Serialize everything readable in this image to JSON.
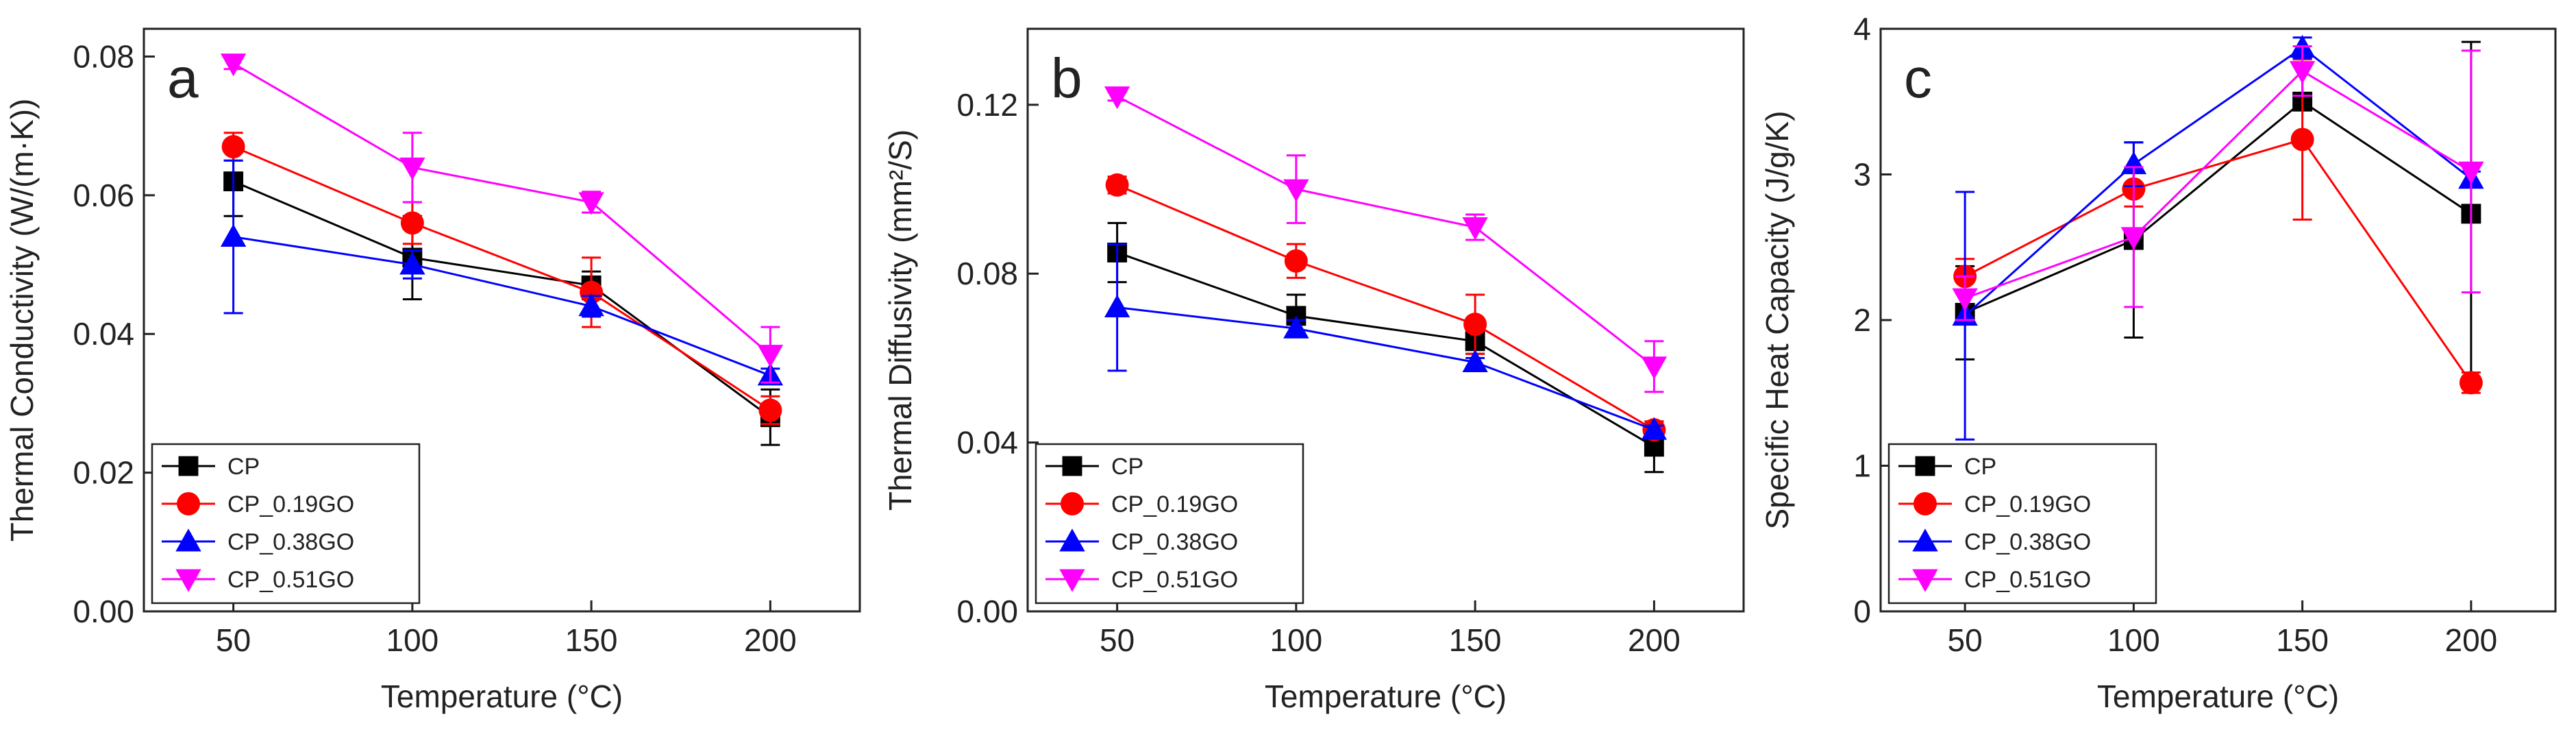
{
  "figure": {
    "layout": "three panels side by side"
  },
  "chart_data": [
    {
      "type": "line",
      "panel_label": "a",
      "xlabel": "Temperature (°C)",
      "ylabel": "Thermal Conductivity (W/(m·K))",
      "x": [
        50,
        100,
        150,
        200
      ],
      "xlim": [
        25,
        225
      ],
      "ylim": [
        0,
        0.084
      ],
      "xticks": [
        50,
        100,
        150,
        200
      ],
      "xtick_labels": [
        "50",
        "100",
        "150",
        "200"
      ],
      "yticks": [
        0,
        0.02,
        0.04,
        0.06,
        0.08
      ],
      "ytick_labels": [
        "0.00",
        "0.02",
        "0.04",
        "0.06",
        "0.08"
      ],
      "legend_position": "bottom-left",
      "series": [
        {
          "name": "CP",
          "color": "#000000",
          "marker": "square",
          "values": [
            0.062,
            0.051,
            0.047,
            0.028
          ],
          "errors": [
            0.005,
            0.006,
            0.002,
            0.004
          ]
        },
        {
          "name": "CP_0.19GO",
          "color": "#ff0000",
          "marker": "circle",
          "values": [
            0.067,
            0.056,
            0.046,
            0.029
          ],
          "errors": [
            0.002,
            0.003,
            0.005,
            0.002
          ]
        },
        {
          "name": "CP_0.38GO",
          "color": "#0000ff",
          "marker": "triangle-up",
          "values": [
            0.054,
            0.05,
            0.044,
            0.034
          ],
          "errors": [
            0.011,
            0.002,
            0.0015,
            0.001
          ]
        },
        {
          "name": "CP_0.51GO",
          "color": "#ff00ff",
          "marker": "triangle-down",
          "values": [
            0.079,
            0.064,
            0.059,
            0.037
          ],
          "errors": [
            0.0008,
            0.005,
            0.0015,
            0.004
          ]
        }
      ]
    },
    {
      "type": "line",
      "panel_label": "b",
      "xlabel": "Temperature (°C)",
      "ylabel": "Thermal Diffusivity (mm²/S)",
      "x": [
        50,
        100,
        150,
        200
      ],
      "xlim": [
        25,
        225
      ],
      "ylim": [
        0,
        0.138
      ],
      "xticks": [
        50,
        100,
        150,
        200
      ],
      "xtick_labels": [
        "50",
        "100",
        "150",
        "200"
      ],
      "yticks": [
        0,
        0.04,
        0.08,
        0.12
      ],
      "ytick_labels": [
        "0.00",
        "0.04",
        "0.08",
        "0.12"
      ],
      "legend_position": "bottom-left",
      "series": [
        {
          "name": "CP",
          "color": "#000000",
          "marker": "square",
          "values": [
            0.085,
            0.07,
            0.064,
            0.039
          ],
          "errors": [
            0.007,
            0.005,
            0.003,
            0.006
          ]
        },
        {
          "name": "CP_0.19GO",
          "color": "#ff0000",
          "marker": "circle",
          "values": [
            0.101,
            0.083,
            0.068,
            0.043
          ],
          "errors": [
            0.002,
            0.004,
            0.007,
            0.002
          ]
        },
        {
          "name": "CP_0.38GO",
          "color": "#0000ff",
          "marker": "triangle-up",
          "values": [
            0.072,
            0.067,
            0.059,
            0.043
          ],
          "errors": [
            0.015,
            0.002,
            0.001,
            0.001
          ]
        },
        {
          "name": "CP_0.51GO",
          "color": "#ff00ff",
          "marker": "triangle-down",
          "values": [
            0.122,
            0.1,
            0.091,
            0.058
          ],
          "errors": [
            0.001,
            0.008,
            0.003,
            0.006
          ]
        }
      ]
    },
    {
      "type": "line",
      "panel_label": "c",
      "xlabel": "Temperature (°C)",
      "ylabel": "Specific Heat Capacity (J/g/K)",
      "x": [
        50,
        100,
        150,
        200
      ],
      "xlim": [
        25,
        225
      ],
      "ylim": [
        0,
        4
      ],
      "xticks": [
        50,
        100,
        150,
        200
      ],
      "xtick_labels": [
        "50",
        "100",
        "150",
        "200"
      ],
      "yticks": [
        0,
        1,
        2,
        3,
        4
      ],
      "ytick_labels": [
        "0",
        "1",
        "2",
        "3",
        "4"
      ],
      "legend_position": "bottom-left",
      "series": [
        {
          "name": "CP",
          "color": "#000000",
          "marker": "square",
          "values": [
            2.05,
            2.55,
            3.5,
            2.73
          ],
          "errors": [
            0.32,
            0.67,
            0.06,
            1.18
          ]
        },
        {
          "name": "CP_0.19GO",
          "color": "#ff0000",
          "marker": "circle",
          "values": [
            2.3,
            2.9,
            3.24,
            1.57
          ],
          "errors": [
            0.12,
            0.12,
            0.55,
            0.07
          ]
        },
        {
          "name": "CP_0.38GO",
          "color": "#0000ff",
          "marker": "triangle-up",
          "values": [
            2.03,
            3.07,
            3.87,
            2.97
          ],
          "errors": [
            0.85,
            0.15,
            0.07,
            0.05
          ]
        },
        {
          "name": "CP_0.51GO",
          "color": "#ff00ff",
          "marker": "triangle-down",
          "values": [
            2.15,
            2.57,
            3.71,
            3.02
          ],
          "errors": [
            0.15,
            0.48,
            0.17,
            0.83
          ]
        }
      ]
    }
  ]
}
